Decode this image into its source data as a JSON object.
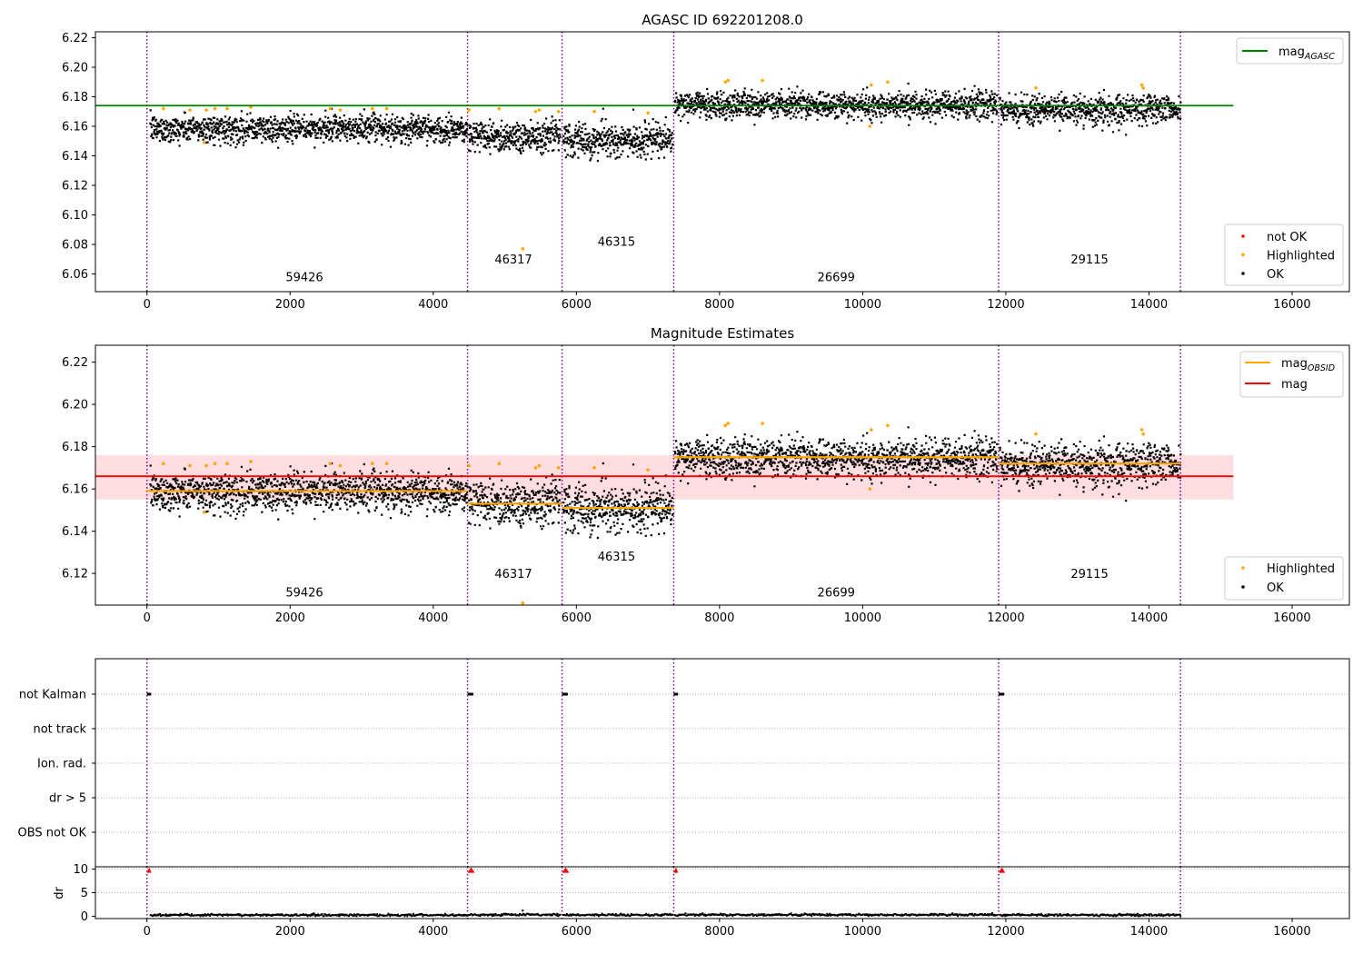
{
  "chart_data": [
    {
      "type": "scatter",
      "title": "AGASC ID 692201208.0",
      "xlim": [
        -720,
        16800
      ],
      "ylim": [
        6.048,
        6.224
      ],
      "xticks": [
        0,
        2000,
        4000,
        6000,
        8000,
        10000,
        12000,
        14000,
        16000
      ],
      "yticks": [
        6.06,
        6.08,
        6.1,
        6.12,
        6.14,
        6.16,
        6.18,
        6.2,
        6.22
      ],
      "ytick_labels": [
        "6.06",
        "6.08",
        "6.10",
        "6.12",
        "6.14",
        "6.16",
        "6.18",
        "6.20",
        "6.22"
      ],
      "obs_boundaries": [
        0,
        4480,
        5800,
        7360,
        11900,
        14440
      ],
      "obs_labels": [
        {
          "x": 2200,
          "y": 6.055,
          "text": "59426"
        },
        {
          "x": 5120,
          "y": 6.067,
          "text": "46317"
        },
        {
          "x": 6560,
          "y": 6.079,
          "text": "46315"
        },
        {
          "x": 9630,
          "y": 6.055,
          "text": "26699"
        },
        {
          "x": 13170,
          "y": 6.067,
          "text": "29115"
        }
      ],
      "segments": [
        {
          "x0": 50,
          "x1": 4480,
          "mean": 6.159,
          "spread": 0.0045
        },
        {
          "x0": 4500,
          "x1": 5780,
          "mean": 6.154,
          "spread": 0.0055
        },
        {
          "x0": 5820,
          "x1": 7350,
          "mean": 6.151,
          "spread": 0.0055
        },
        {
          "x0": 7380,
          "x1": 11880,
          "mean": 6.175,
          "spread": 0.0045
        },
        {
          "x0": 11920,
          "x1": 14440,
          "mean": 6.172,
          "spread": 0.005
        }
      ],
      "reference_line": {
        "y": 6.174,
        "x0": -720,
        "x1": 15180,
        "label": "mag",
        "sub": "AGASC",
        "color": "#008000"
      },
      "highlighted_points": [
        [
          230,
          6.172
        ],
        [
          600,
          6.171
        ],
        [
          800,
          6.149
        ],
        [
          830,
          6.171
        ],
        [
          950,
          6.172
        ],
        [
          1120,
          6.172
        ],
        [
          1450,
          6.173
        ],
        [
          2560,
          6.172
        ],
        [
          2700,
          6.171
        ],
        [
          3150,
          6.172
        ],
        [
          3350,
          6.172
        ],
        [
          4500,
          6.171
        ],
        [
          4920,
          6.172
        ],
        [
          5250,
          6.077
        ],
        [
          5430,
          6.17
        ],
        [
          5480,
          6.171
        ],
        [
          5750,
          6.17
        ],
        [
          6250,
          6.17
        ],
        [
          7000,
          6.169
        ],
        [
          8080,
          6.19
        ],
        [
          8120,
          6.191
        ],
        [
          8600,
          6.191
        ],
        [
          10100,
          6.16
        ],
        [
          10120,
          6.188
        ],
        [
          10350,
          6.19
        ],
        [
          12420,
          6.186
        ],
        [
          13900,
          6.188
        ],
        [
          13920,
          6.186
        ]
      ],
      "legend_top": [
        {
          "label": "mag",
          "sub": "AGASC",
          "color": "#008000",
          "kind": "line"
        }
      ],
      "legend_bottom": [
        {
          "label": "not OK",
          "color": "#ff0000",
          "kind": "dot"
        },
        {
          "label": "Highlighted",
          "color": "#ffa500",
          "kind": "dot"
        },
        {
          "label": "OK",
          "color": "#000000",
          "kind": "dot"
        }
      ]
    },
    {
      "type": "scatter",
      "title": "Magnitude Estimates",
      "xlim": [
        -720,
        16800
      ],
      "ylim": [
        6.105,
        6.228
      ],
      "xticks": [
        0,
        2000,
        4000,
        6000,
        8000,
        10000,
        12000,
        14000,
        16000
      ],
      "yticks": [
        6.12,
        6.14,
        6.16,
        6.18,
        6.2,
        6.22
      ],
      "ytick_labels": [
        "6.12",
        "6.14",
        "6.16",
        "6.18",
        "6.20",
        "6.22"
      ],
      "obs_boundaries": [
        0,
        4480,
        5800,
        7360,
        11900,
        14440
      ],
      "obs_labels": [
        {
          "x": 2200,
          "y": 6.109,
          "text": "59426"
        },
        {
          "x": 5120,
          "y": 6.118,
          "text": "46317"
        },
        {
          "x": 6560,
          "y": 6.126,
          "text": "46315"
        },
        {
          "x": 9630,
          "y": 6.109,
          "text": "26699"
        },
        {
          "x": 13170,
          "y": 6.118,
          "text": "29115"
        }
      ],
      "band": {
        "y0": 6.155,
        "y1": 6.176,
        "x0": -720,
        "x1": 15180,
        "color": "#ffdde1"
      },
      "mean_line": {
        "y": 6.166,
        "x0": -720,
        "x1": 15180,
        "label": "mag",
        "color": "#ff0000"
      },
      "obsid_means": [
        {
          "x0": 0,
          "x1": 4480,
          "y": 6.159
        },
        {
          "x0": 4480,
          "x1": 5800,
          "y": 6.153
        },
        {
          "x0": 5800,
          "x1": 7360,
          "y": 6.151
        },
        {
          "x0": 7360,
          "x1": 11900,
          "y": 6.175
        },
        {
          "x0": 11900,
          "x1": 14440,
          "y": 6.172
        }
      ],
      "segments": [
        {
          "x0": 50,
          "x1": 4480,
          "mean": 6.159,
          "spread": 0.0045
        },
        {
          "x0": 4500,
          "x1": 5780,
          "mean": 6.154,
          "spread": 0.0055
        },
        {
          "x0": 5820,
          "x1": 7350,
          "mean": 6.151,
          "spread": 0.0055
        },
        {
          "x0": 7380,
          "x1": 11880,
          "mean": 6.175,
          "spread": 0.0045
        },
        {
          "x0": 11920,
          "x1": 14440,
          "mean": 6.172,
          "spread": 0.005
        }
      ],
      "highlighted_points": [
        [
          230,
          6.172
        ],
        [
          600,
          6.171
        ],
        [
          800,
          6.149
        ],
        [
          830,
          6.171
        ],
        [
          950,
          6.172
        ],
        [
          1120,
          6.172
        ],
        [
          1450,
          6.173
        ],
        [
          2560,
          6.172
        ],
        [
          2700,
          6.171
        ],
        [
          3150,
          6.172
        ],
        [
          3350,
          6.172
        ],
        [
          4500,
          6.171
        ],
        [
          4920,
          6.172
        ],
        [
          5250,
          6.106
        ],
        [
          5430,
          6.17
        ],
        [
          5480,
          6.171
        ],
        [
          5750,
          6.17
        ],
        [
          6250,
          6.17
        ],
        [
          7000,
          6.169
        ],
        [
          8080,
          6.19
        ],
        [
          8120,
          6.191
        ],
        [
          8600,
          6.191
        ],
        [
          10100,
          6.16
        ],
        [
          10120,
          6.188
        ],
        [
          10350,
          6.19
        ],
        [
          12420,
          6.186
        ],
        [
          13900,
          6.188
        ],
        [
          13920,
          6.186
        ]
      ],
      "legend_top": [
        {
          "label": "mag",
          "sub": "OBSID",
          "color": "#ffa500",
          "kind": "line"
        },
        {
          "label": "mag",
          "sub": "",
          "color": "#ff0000",
          "kind": "line"
        }
      ],
      "legend_bottom": [
        {
          "label": "Highlighted",
          "color": "#ffa500",
          "kind": "dot"
        },
        {
          "label": "OK",
          "color": "#000000",
          "kind": "dot"
        }
      ]
    },
    {
      "type": "scatter",
      "title": "",
      "xlim": [
        -720,
        16800
      ],
      "categories": [
        "not Kalman",
        "not track",
        "Ion. rad.",
        "dr > 5",
        "OBS not OK"
      ],
      "obs_boundaries": [
        0,
        4480,
        5800,
        7360,
        11900,
        14440
      ],
      "flag_marks": [
        {
          "category": "not Kalman",
          "x0": 0,
          "x1": 60
        },
        {
          "category": "not Kalman",
          "x0": 4480,
          "x1": 4560
        },
        {
          "category": "not Kalman",
          "x0": 5800,
          "x1": 5880
        },
        {
          "category": "not Kalman",
          "x0": 7360,
          "x1": 7420
        },
        {
          "category": "not Kalman",
          "x0": 11900,
          "x1": 11980
        }
      ]
    },
    {
      "type": "scatter",
      "title": "",
      "ylabel": "dr",
      "xlim": [
        -720,
        16800
      ],
      "ylim": [
        -0.5,
        10.5
      ],
      "xticks": [
        0,
        2000,
        4000,
        6000,
        8000,
        10000,
        12000,
        14000,
        16000
      ],
      "yticks": [
        0,
        5,
        10
      ],
      "ytick_labels": [
        "0",
        "5",
        "10"
      ],
      "obs_boundaries": [
        0,
        4480,
        5800,
        7360,
        11900,
        14440
      ],
      "clipped_marks": [
        {
          "x0": 0,
          "x1": 60,
          "y": 9.8
        },
        {
          "x0": 4480,
          "x1": 4580,
          "y": 9.8
        },
        {
          "x0": 5800,
          "x1": 5900,
          "y": 9.8
        },
        {
          "x0": 7360,
          "x1": 7420,
          "y": 9.8
        },
        {
          "x0": 11900,
          "x1": 11990,
          "y": 9.8
        }
      ],
      "outlier_points": [
        [
          5250,
          1.2
        ]
      ],
      "segments": [
        {
          "x0": 50,
          "x1": 4480,
          "mean": 0.25,
          "spread": 0.12
        },
        {
          "x0": 4500,
          "x1": 5780,
          "mean": 0.3,
          "spread": 0.12
        },
        {
          "x0": 5820,
          "x1": 7350,
          "mean": 0.28,
          "spread": 0.12
        },
        {
          "x0": 7380,
          "x1": 11880,
          "mean": 0.3,
          "spread": 0.12
        },
        {
          "x0": 11920,
          "x1": 14440,
          "mean": 0.25,
          "spread": 0.12
        }
      ]
    }
  ]
}
